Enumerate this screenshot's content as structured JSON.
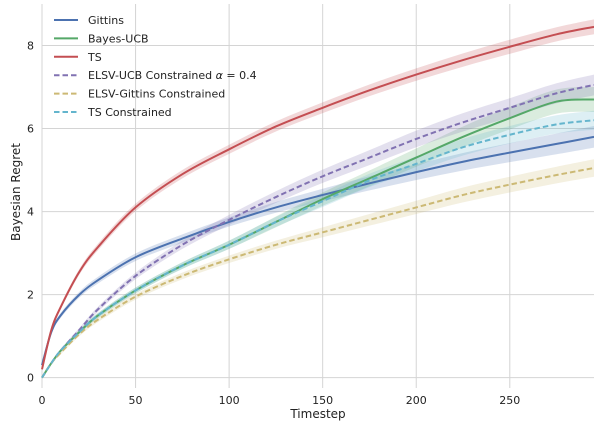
{
  "chart_data": {
    "type": "line",
    "xlabel": "Timestep",
    "ylabel": "Bayesian Regret",
    "xlim": [
      0,
      295
    ],
    "ylim": [
      -0.25,
      9.0
    ],
    "xticks": [
      0,
      50,
      100,
      150,
      200,
      250
    ],
    "yticks": [
      0,
      2,
      4,
      6,
      8
    ],
    "grid": true,
    "legend_position": "top-left",
    "x": [
      0,
      5,
      10,
      20,
      30,
      50,
      75,
      100,
      125,
      150,
      175,
      200,
      225,
      250,
      275,
      295
    ],
    "series": [
      {
        "name": "Gittins",
        "color": "#4c72b0",
        "dash": "solid",
        "values": [
          0.3,
          1.1,
          1.5,
          2.0,
          2.35,
          2.9,
          3.35,
          3.75,
          4.1,
          4.4,
          4.68,
          4.95,
          5.2,
          5.42,
          5.63,
          5.8
        ],
        "band": [
          0.03,
          0.05,
          0.06,
          0.07,
          0.08,
          0.09,
          0.1,
          0.11,
          0.13,
          0.15,
          0.17,
          0.19,
          0.21,
          0.23,
          0.25,
          0.26
        ]
      },
      {
        "name": "Bayes-UCB",
        "color": "#55a868",
        "dash": "solid",
        "values": [
          0.0,
          0.35,
          0.65,
          1.1,
          1.5,
          2.1,
          2.7,
          3.2,
          3.75,
          4.3,
          4.8,
          5.3,
          5.8,
          6.25,
          6.65,
          6.7
        ],
        "band": [
          0.02,
          0.03,
          0.04,
          0.05,
          0.06,
          0.07,
          0.08,
          0.1,
          0.13,
          0.16,
          0.19,
          0.22,
          0.25,
          0.27,
          0.29,
          0.3
        ]
      },
      {
        "name": "TS",
        "color": "#c44e52",
        "dash": "solid",
        "values": [
          0.2,
          1.15,
          1.7,
          2.55,
          3.15,
          4.1,
          4.9,
          5.5,
          6.05,
          6.5,
          6.92,
          7.3,
          7.65,
          7.97,
          8.27,
          8.45
        ],
        "band": [
          0.03,
          0.05,
          0.06,
          0.07,
          0.08,
          0.09,
          0.1,
          0.11,
          0.12,
          0.13,
          0.14,
          0.15,
          0.16,
          0.17,
          0.17,
          0.18
        ]
      },
      {
        "name": "ELSV-UCB Constrained α = 0.4",
        "label_prefix": "ELSV-UCB Constrained ",
        "label_symbol": "α",
        "label_suffix": " = 0.4",
        "color": "#8172b2",
        "dash": "dashed",
        "values": [
          0.0,
          0.35,
          0.65,
          1.15,
          1.65,
          2.45,
          3.2,
          3.8,
          4.35,
          4.85,
          5.3,
          5.75,
          6.15,
          6.5,
          6.85,
          7.05
        ],
        "band": [
          0.02,
          0.03,
          0.04,
          0.05,
          0.06,
          0.08,
          0.1,
          0.12,
          0.14,
          0.16,
          0.18,
          0.2,
          0.22,
          0.23,
          0.24,
          0.25
        ]
      },
      {
        "name": "ELSV-Gittins Constrained",
        "color": "#ccb974",
        "dash": "dashed",
        "values": [
          0.0,
          0.35,
          0.6,
          1.05,
          1.4,
          1.95,
          2.45,
          2.85,
          3.2,
          3.5,
          3.8,
          4.1,
          4.4,
          4.65,
          4.88,
          5.05
        ],
        "band": [
          0.02,
          0.03,
          0.04,
          0.05,
          0.06,
          0.07,
          0.08,
          0.09,
          0.1,
          0.12,
          0.14,
          0.16,
          0.18,
          0.19,
          0.2,
          0.21
        ]
      },
      {
        "name": "TS Constrained",
        "color": "#64b5cd",
        "dash": "dashed",
        "values": [
          0.0,
          0.35,
          0.65,
          1.1,
          1.5,
          2.1,
          2.7,
          3.2,
          3.75,
          4.25,
          4.75,
          5.15,
          5.55,
          5.85,
          6.1,
          6.2
        ],
        "band": [
          0.02,
          0.03,
          0.04,
          0.05,
          0.06,
          0.07,
          0.08,
          0.1,
          0.12,
          0.14,
          0.16,
          0.18,
          0.2,
          0.21,
          0.22,
          0.23
        ]
      }
    ]
  }
}
